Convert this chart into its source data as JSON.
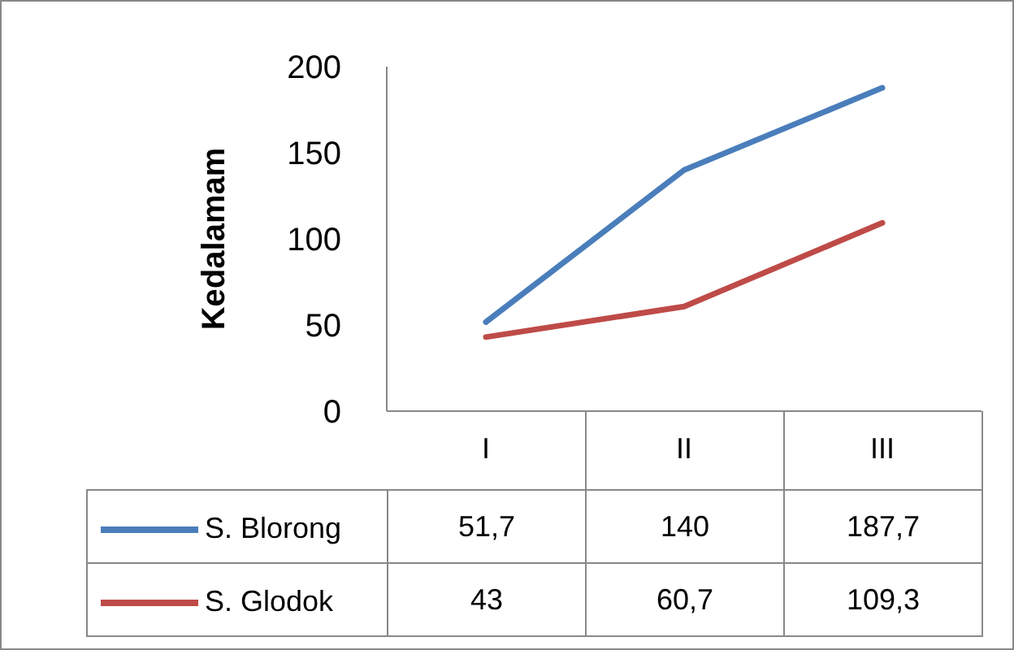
{
  "chart_data": {
    "type": "line",
    "ylabel": "Kedalamam",
    "categories": [
      "I",
      "II",
      "III"
    ],
    "ylim": [
      0,
      200
    ],
    "yticks": [
      0,
      50,
      100,
      150,
      200
    ],
    "legend": "bottom left",
    "series": [
      {
        "name": "S. Blorong",
        "color": "#4a7ebb",
        "values": [
          51.7,
          140,
          187.7
        ],
        "value_labels": [
          "51,7",
          "140",
          "187,7"
        ]
      },
      {
        "name": "S. Glodok",
        "color": "#be4b48",
        "values": [
          43,
          60.7,
          109.3
        ],
        "value_labels": [
          "43",
          "60,7",
          "109,3"
        ]
      }
    ]
  }
}
